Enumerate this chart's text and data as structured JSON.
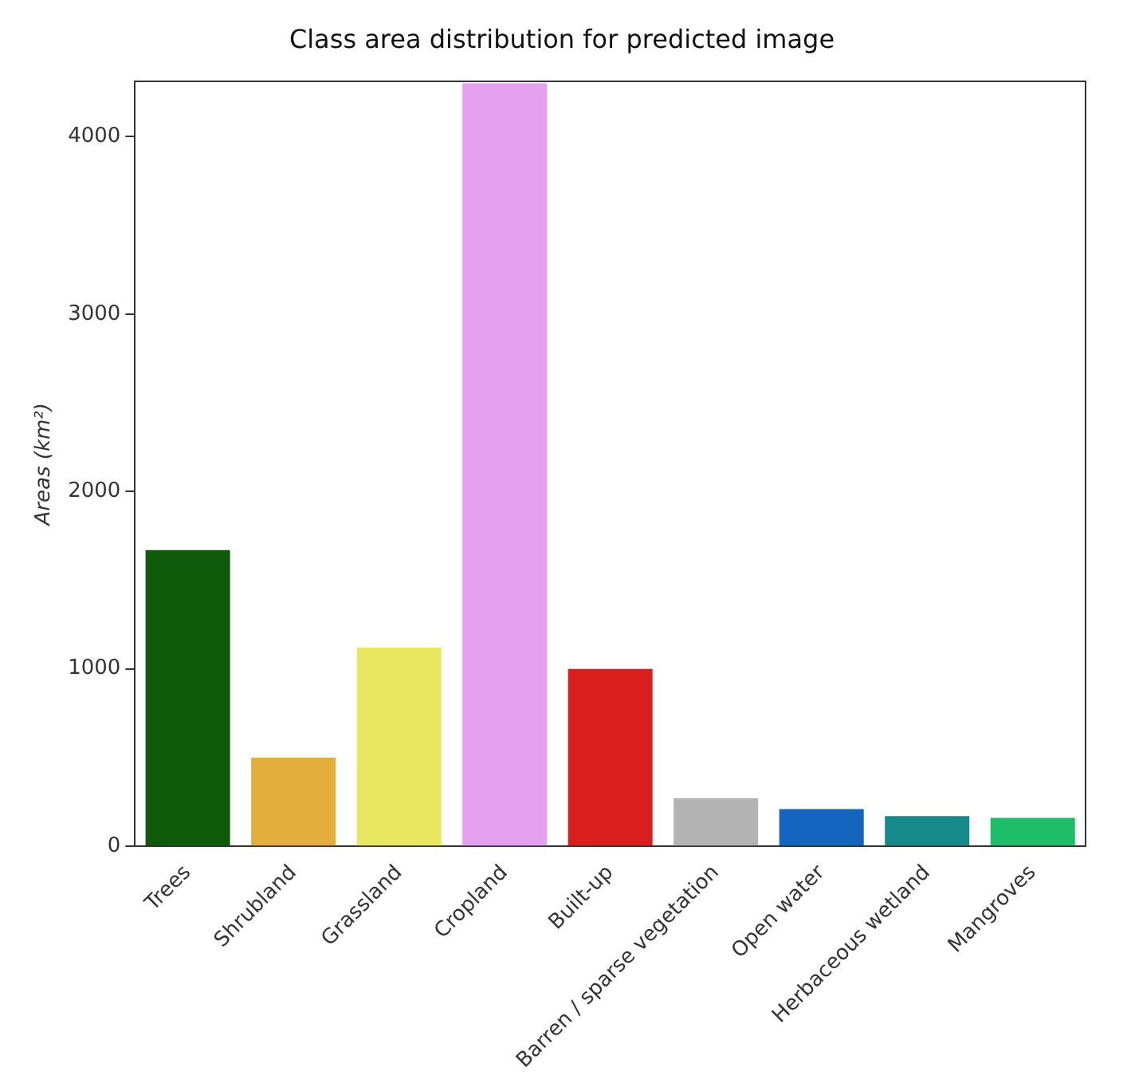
{
  "chart_data": {
    "type": "bar",
    "title": "Class area distribution for predicted image",
    "ylabel": "Areas (km²)",
    "categories": [
      "Trees",
      "Shrubland",
      "Grassland",
      "Cropland",
      "Built-up",
      "Barren / sparse vegetation",
      "Open water",
      "Herbaceous wetland",
      "Mangroves"
    ],
    "values": [
      1670,
      500,
      1120,
      4300,
      1000,
      270,
      210,
      170,
      160
    ],
    "colors": [
      "#0f5a0a",
      "#e3ae3c",
      "#e8e860",
      "#e6a0f0",
      "#da1e1e",
      "#b3b3b3",
      "#1565c0",
      "#168a8a",
      "#1dbd6a"
    ],
    "ylim": [
      0,
      4310
    ],
    "yticks": [
      0,
      1000,
      2000,
      3000,
      4000
    ],
    "grid": false,
    "legend": false
  }
}
